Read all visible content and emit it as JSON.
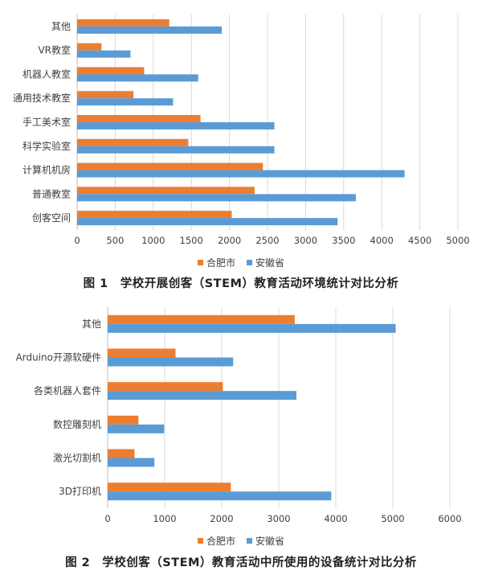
{
  "colors": {
    "hefei": "#ED7D31",
    "anhui": "#5B9BD5",
    "grid": "#D9D9D9",
    "axis": "#BFBFBF"
  },
  "chart_data": [
    {
      "type": "bar",
      "orientation": "horizontal",
      "categories": [
        "其他",
        "VR教室",
        "机器人教室",
        "通用技术教室",
        "手工美术室",
        "科学实验室",
        "计算机机房",
        "普通教室",
        "创客空间"
      ],
      "series": [
        {
          "name": "合肥市",
          "values": [
            1210,
            320,
            880,
            740,
            1620,
            1460,
            2440,
            2330,
            2030
          ]
        },
        {
          "name": "安徽省",
          "values": [
            1900,
            700,
            1590,
            1260,
            2590,
            2590,
            4300,
            3660,
            3420
          ]
        }
      ],
      "ticks": [
        "0",
        "500",
        "1000",
        "1500",
        "2000",
        "2500",
        "3000",
        "3500",
        "4000",
        "4500",
        "5000"
      ],
      "xlim": [
        0,
        5000
      ],
      "grid": true,
      "legend": "bottom",
      "caption": "图 1　学校开展创客（STEM）教育活动环境统计对比分析"
    },
    {
      "type": "bar",
      "orientation": "horizontal",
      "categories": [
        "其他",
        "Arduino开源软硬件",
        "各类机器人套件",
        "数控雕刻机",
        "激光切割机",
        "3D打印机"
      ],
      "series": [
        {
          "name": "合肥市",
          "values": [
            3280,
            1190,
            2020,
            540,
            470,
            2160
          ]
        },
        {
          "name": "安徽省",
          "values": [
            5050,
            2200,
            3310,
            990,
            820,
            3920
          ]
        }
      ],
      "ticks": [
        "0",
        "1000",
        "2000",
        "3000",
        "4000",
        "5000",
        "6000"
      ],
      "xlim": [
        0,
        6000
      ],
      "grid": true,
      "legend": "bottom",
      "caption": "图 2　学校创客（STEM）教育活动中所使用的设备统计对比分析"
    }
  ]
}
